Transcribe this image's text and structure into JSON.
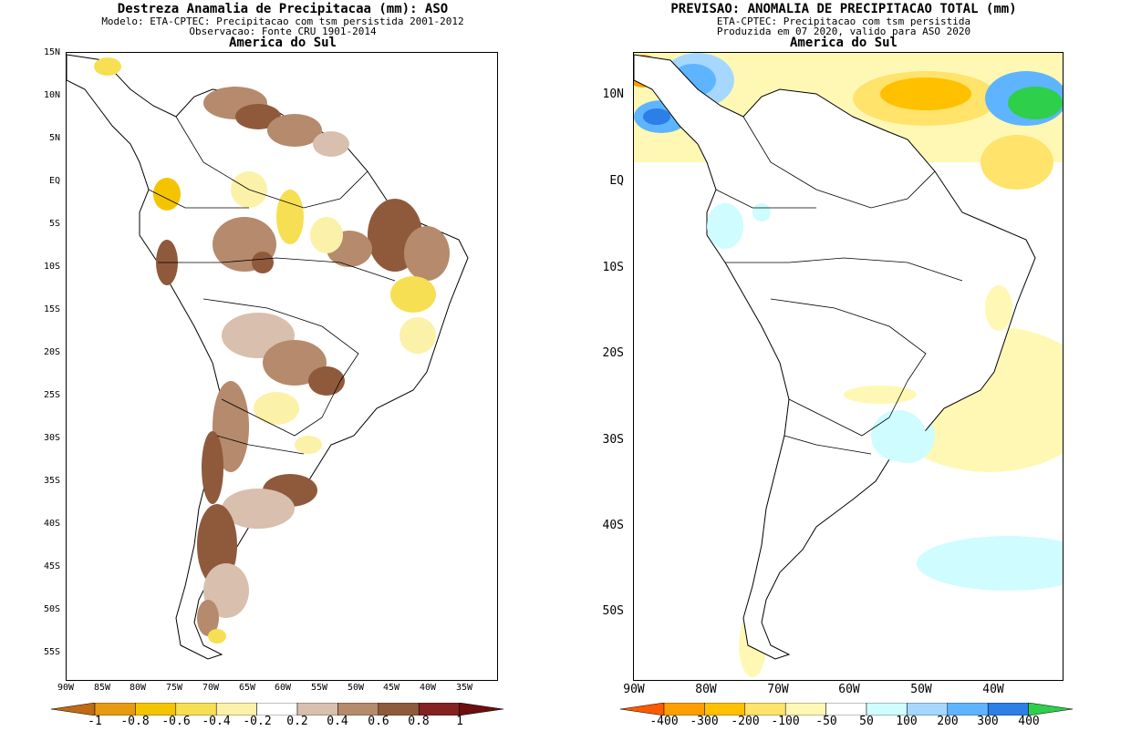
{
  "left_panel": {
    "title": "Destreza Anamalia de Precipitacaa (mm): ASO",
    "subtitle1": "Modelo: ETA-CPTEC: Precipitacao com tsm persistida 2001-2012",
    "subtitle2": "Observacao: Fonte CRU 1901-2014",
    "region": "America do Sul",
    "lat_labels": [
      "15N",
      "10N",
      "5N",
      "EQ",
      "5S",
      "10S",
      "15S",
      "20S",
      "25S",
      "30S",
      "35S",
      "40S",
      "45S",
      "50S",
      "55S"
    ],
    "lon_labels": [
      "90W",
      "85W",
      "80W",
      "75W",
      "70W",
      "65W",
      "60W",
      "55W",
      "50W",
      "45W",
      "40W",
      "35W"
    ],
    "colorbar": {
      "labels": [
        "-1",
        "-0.8",
        "-0.6",
        "-0.4",
        "-0.2",
        "0.2",
        "0.4",
        "0.6",
        "0.8",
        "1"
      ],
      "colors": [
        "#c06a14",
        "#e69a10",
        "#f5c400",
        "#f7df53",
        "#fbf1a8",
        "#ffffff",
        "#d8bfae",
        "#b58a6d",
        "#8f5a3c",
        "#842222",
        "#6b0f0f"
      ]
    }
  },
  "right_panel": {
    "title": "PREVISAO: ANOMALIA DE PRECIPITACAO TOTAL (mm)",
    "subtitle1": "ETA-CPTEC: Precipitacao com tsm persistida",
    "subtitle2": "Produzida em 07 2020, valido para ASO 2020",
    "region": "America do Sul",
    "lat_labels": [
      "10N",
      "EQ",
      "10S",
      "20S",
      "30S",
      "40S",
      "50S"
    ],
    "lon_labels": [
      "90W",
      "80W",
      "70W",
      "60W",
      "50W",
      "40W"
    ],
    "colorbar": {
      "labels": [
        "-400",
        "-300",
        "-200",
        "-100",
        "-50",
        "50",
        "100",
        "200",
        "300",
        "400"
      ],
      "colors": [
        "#ff5a00",
        "#ff9e00",
        "#ffc000",
        "#ffe36a",
        "#fff8b5",
        "#ffffff",
        "#cffcff",
        "#a6d8ff",
        "#5fb4ff",
        "#2b7fe6",
        "#2ecf4a"
      ]
    }
  }
}
